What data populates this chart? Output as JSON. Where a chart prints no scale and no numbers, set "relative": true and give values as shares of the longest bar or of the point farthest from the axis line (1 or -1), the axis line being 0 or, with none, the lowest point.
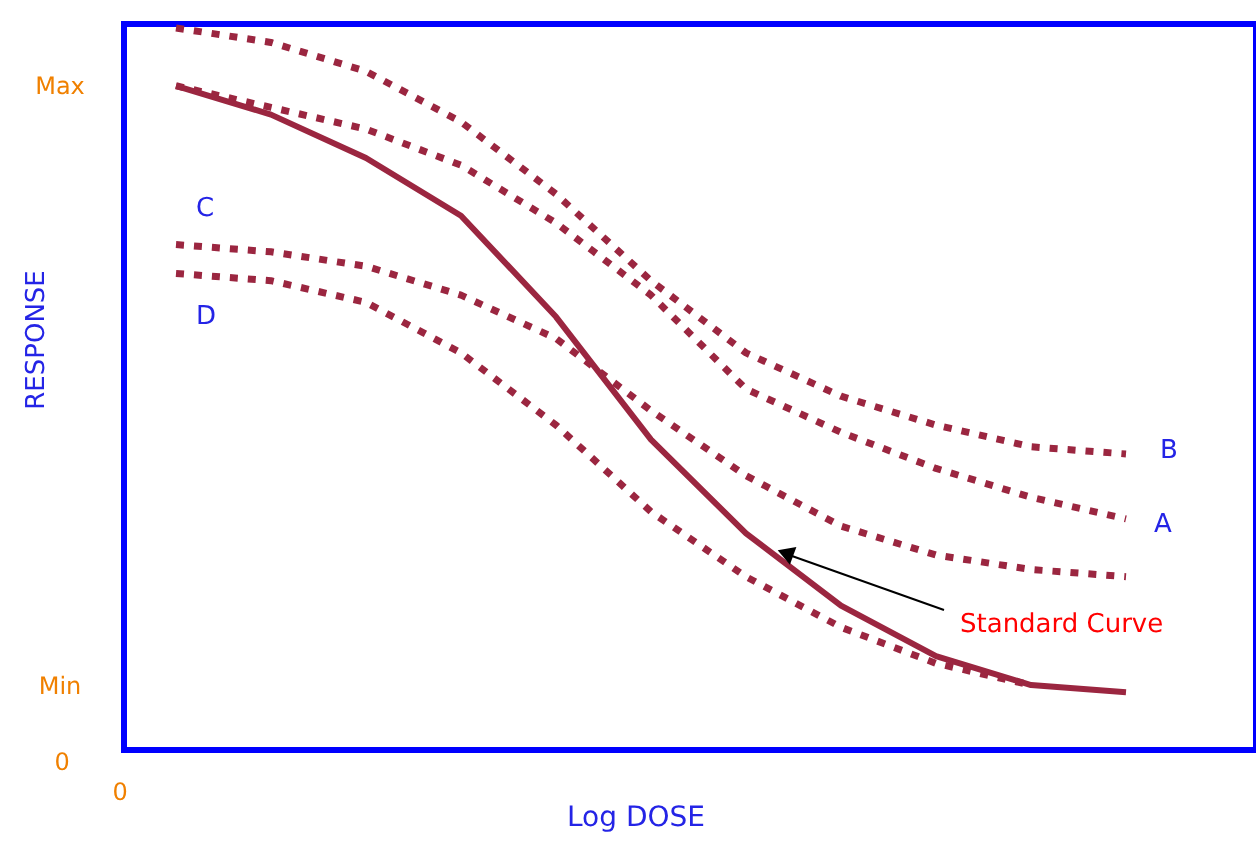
{
  "chart_data": {
    "type": "line",
    "relative": true,
    "xlabel": "Log DOSE",
    "ylabel": "RESPONSE",
    "categories": [
      null,
      null,
      null,
      null,
      null,
      null,
      null,
      null,
      null,
      null,
      null
    ],
    "series": [
      {
        "name": "B",
        "color": "#9b2640",
        "line_style": "dotted",
        "values": [
          1.0,
          0.98,
          0.94,
          0.87,
          0.77,
          0.65,
          0.55,
          0.49,
          0.45,
          0.42,
          0.41
        ]
      },
      {
        "name": "A",
        "color": "#9b2640",
        "line_style": "dotted",
        "values": [
          0.92,
          0.89,
          0.86,
          0.81,
          0.73,
          0.63,
          0.5,
          0.44,
          0.39,
          0.35,
          0.32
        ]
      },
      {
        "name": "C",
        "color": "#9b2640",
        "line_style": "dotted",
        "values": [
          0.7,
          0.69,
          0.67,
          0.63,
          0.57,
          0.47,
          0.38,
          0.31,
          0.27,
          0.25,
          0.24
        ]
      },
      {
        "name": "D",
        "color": "#9b2640",
        "line_style": "dotted",
        "values": [
          0.66,
          0.65,
          0.62,
          0.55,
          0.45,
          0.33,
          0.24,
          0.17,
          0.12,
          0.09,
          null
        ]
      },
      {
        "name": "Standard Curve",
        "color": "#9b2640",
        "line_style": "solid",
        "values": [
          0.92,
          0.88,
          0.82,
          0.74,
          0.6,
          0.43,
          0.3,
          0.2,
          0.13,
          0.09,
          0.08
        ]
      }
    ],
    "annotations": [
      "Max",
      "Min",
      "0",
      "0"
    ]
  }
}
